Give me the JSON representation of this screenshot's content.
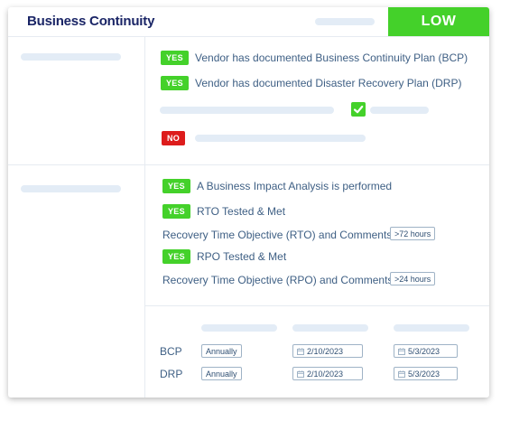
{
  "header": {
    "title": "Business Continuity",
    "risk_level": "LOW"
  },
  "section_plans": {
    "items": [
      {
        "status": "YES",
        "label": "Vendor has documented Business Continuity Plan (BCP)"
      },
      {
        "status": "YES",
        "label": "Vendor has documented Disaster Recovery Plan (DRP)"
      },
      {
        "status": "NO"
      }
    ]
  },
  "section_bia": {
    "bia": {
      "status": "YES",
      "label": "A Business Impact Analysis is performed"
    },
    "rto": {
      "status": "YES",
      "label": "RTO Tested & Met",
      "comment_label": "Recovery Time Objective (RTO) and Comments",
      "value": ">72 hours"
    },
    "rpo": {
      "status": "YES",
      "label": "RPO Tested & Met",
      "comment_label": "Recovery Time Objective (RPO) and Comments",
      "value": ">24 hours"
    }
  },
  "schedule": {
    "rows": [
      {
        "name": "BCP",
        "frequency": "Annually",
        "date1": "2/10/2023",
        "date2": "5/3/2023"
      },
      {
        "name": "DRP",
        "frequency": "Annually",
        "date1": "2/10/2023",
        "date2": "5/3/2023"
      }
    ]
  },
  "colors": {
    "yes": "#44d12a",
    "no": "#dd1c1c",
    "title": "#1a2566",
    "text": "#3e5f84"
  },
  "icons": [
    "checkmark-icon",
    "calendar-icon"
  ]
}
